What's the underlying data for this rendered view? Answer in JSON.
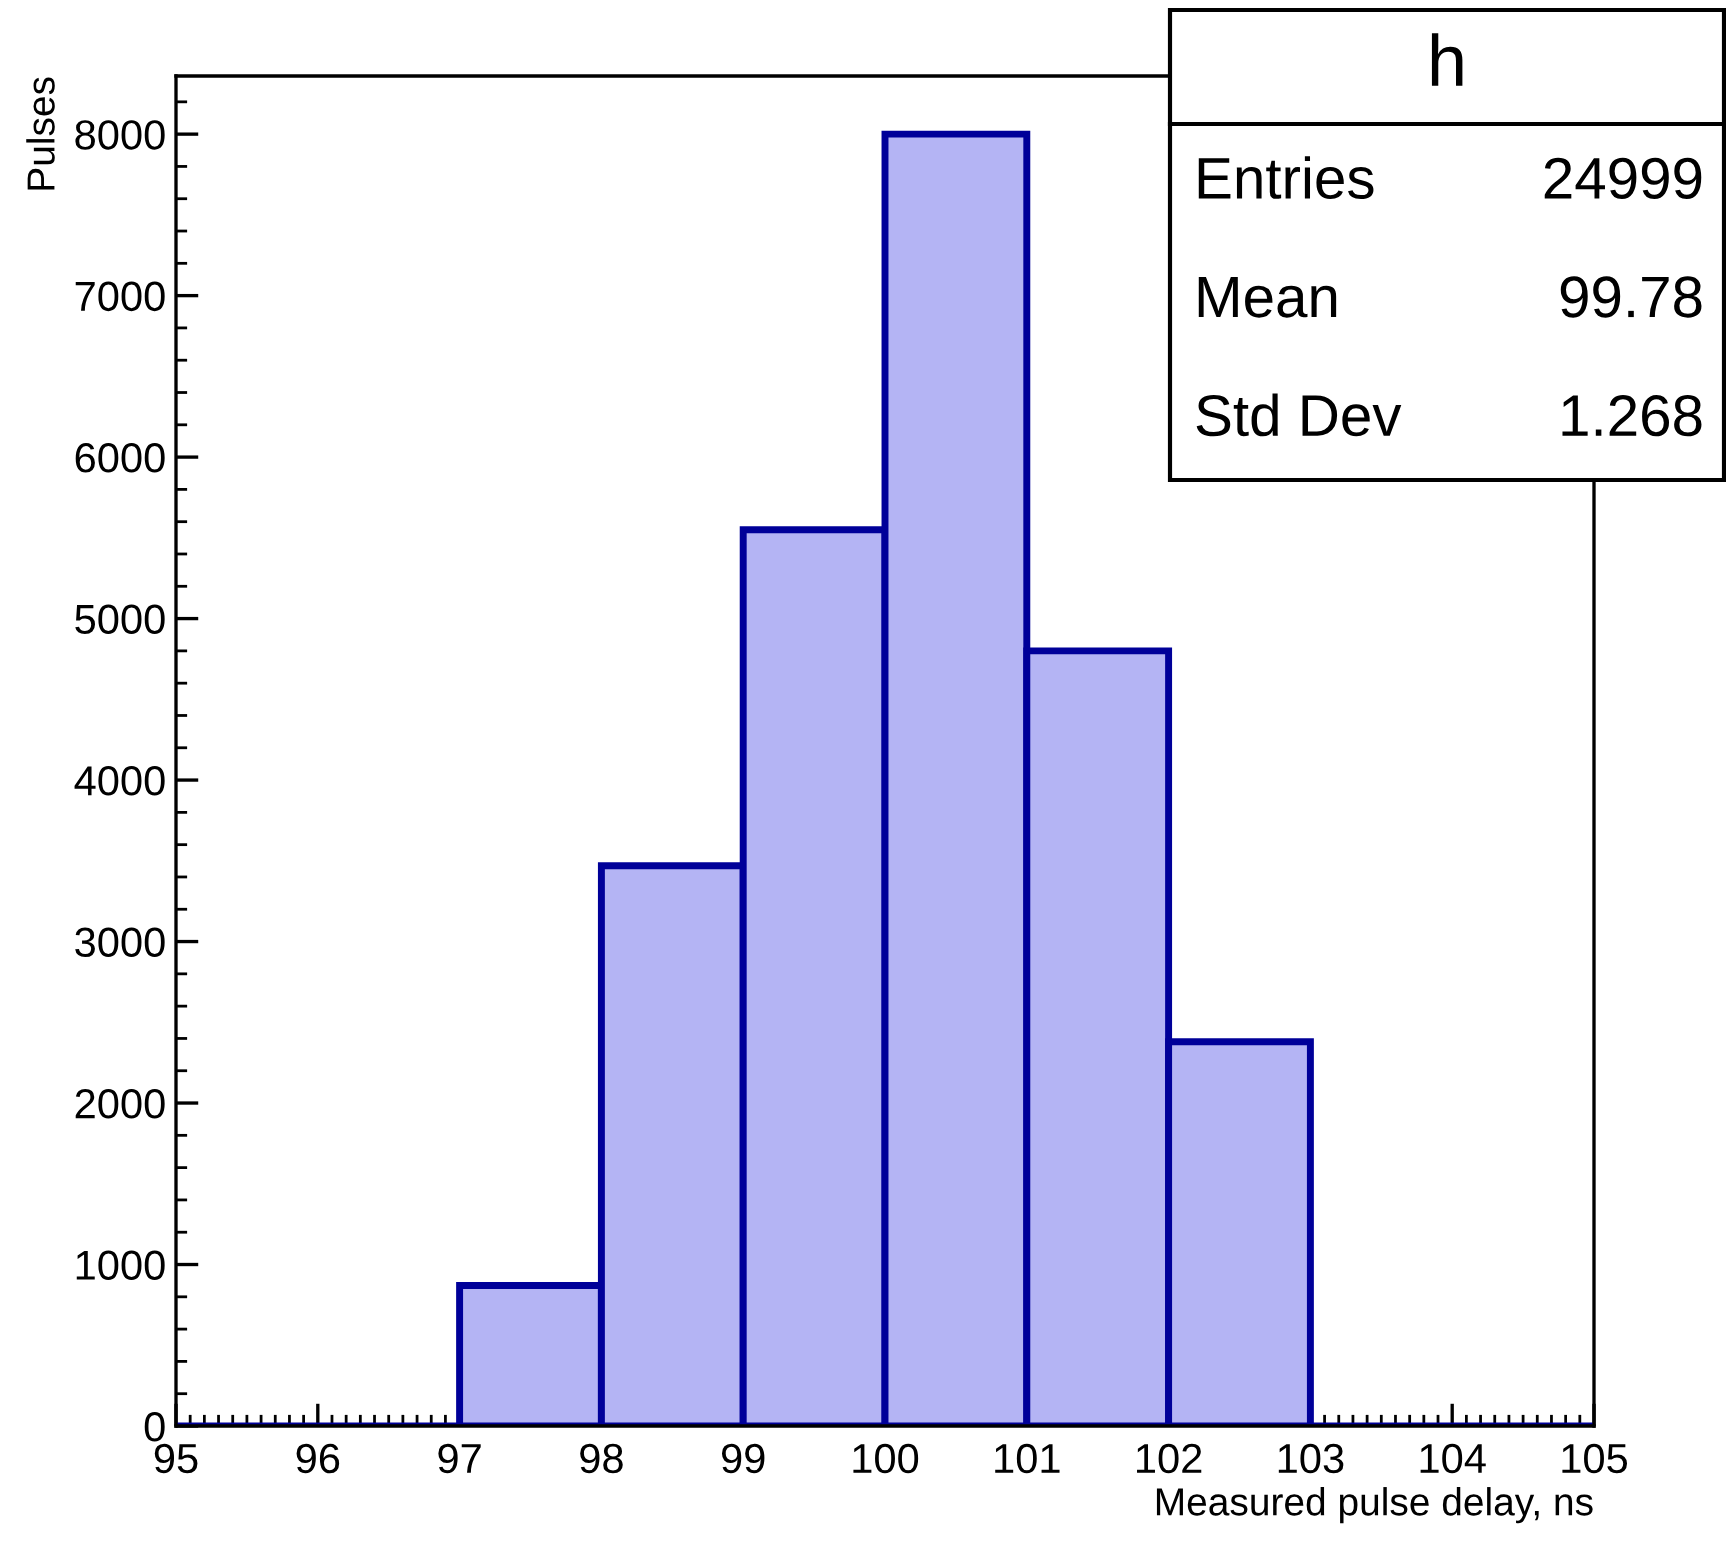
{
  "chart_data": {
    "type": "histogram",
    "bins": [
      95,
      96,
      97,
      98,
      99,
      100,
      101,
      102,
      103,
      104,
      105
    ],
    "values": [
      0,
      0,
      870,
      3470,
      5550,
      8000,
      4800,
      2380,
      0,
      0
    ],
    "color": "#000099",
    "xlabel": "Measured pulse delay, ns",
    "ylabel": "Pulses",
    "xlim": [
      95,
      105
    ],
    "xticks": [
      95,
      96,
      97,
      98,
      99,
      100,
      101,
      102,
      103,
      104,
      105
    ],
    "ylim": [
      0,
      8360
    ],
    "yticks": [
      0,
      1000,
      2000,
      3000,
      4000,
      5000,
      6000,
      7000,
      8000
    ],
    "grid": false,
    "annotations": [
      "h",
      "Entries",
      "24999",
      "Mean",
      "99.78",
      "Std Dev",
      "1.268"
    ]
  }
}
